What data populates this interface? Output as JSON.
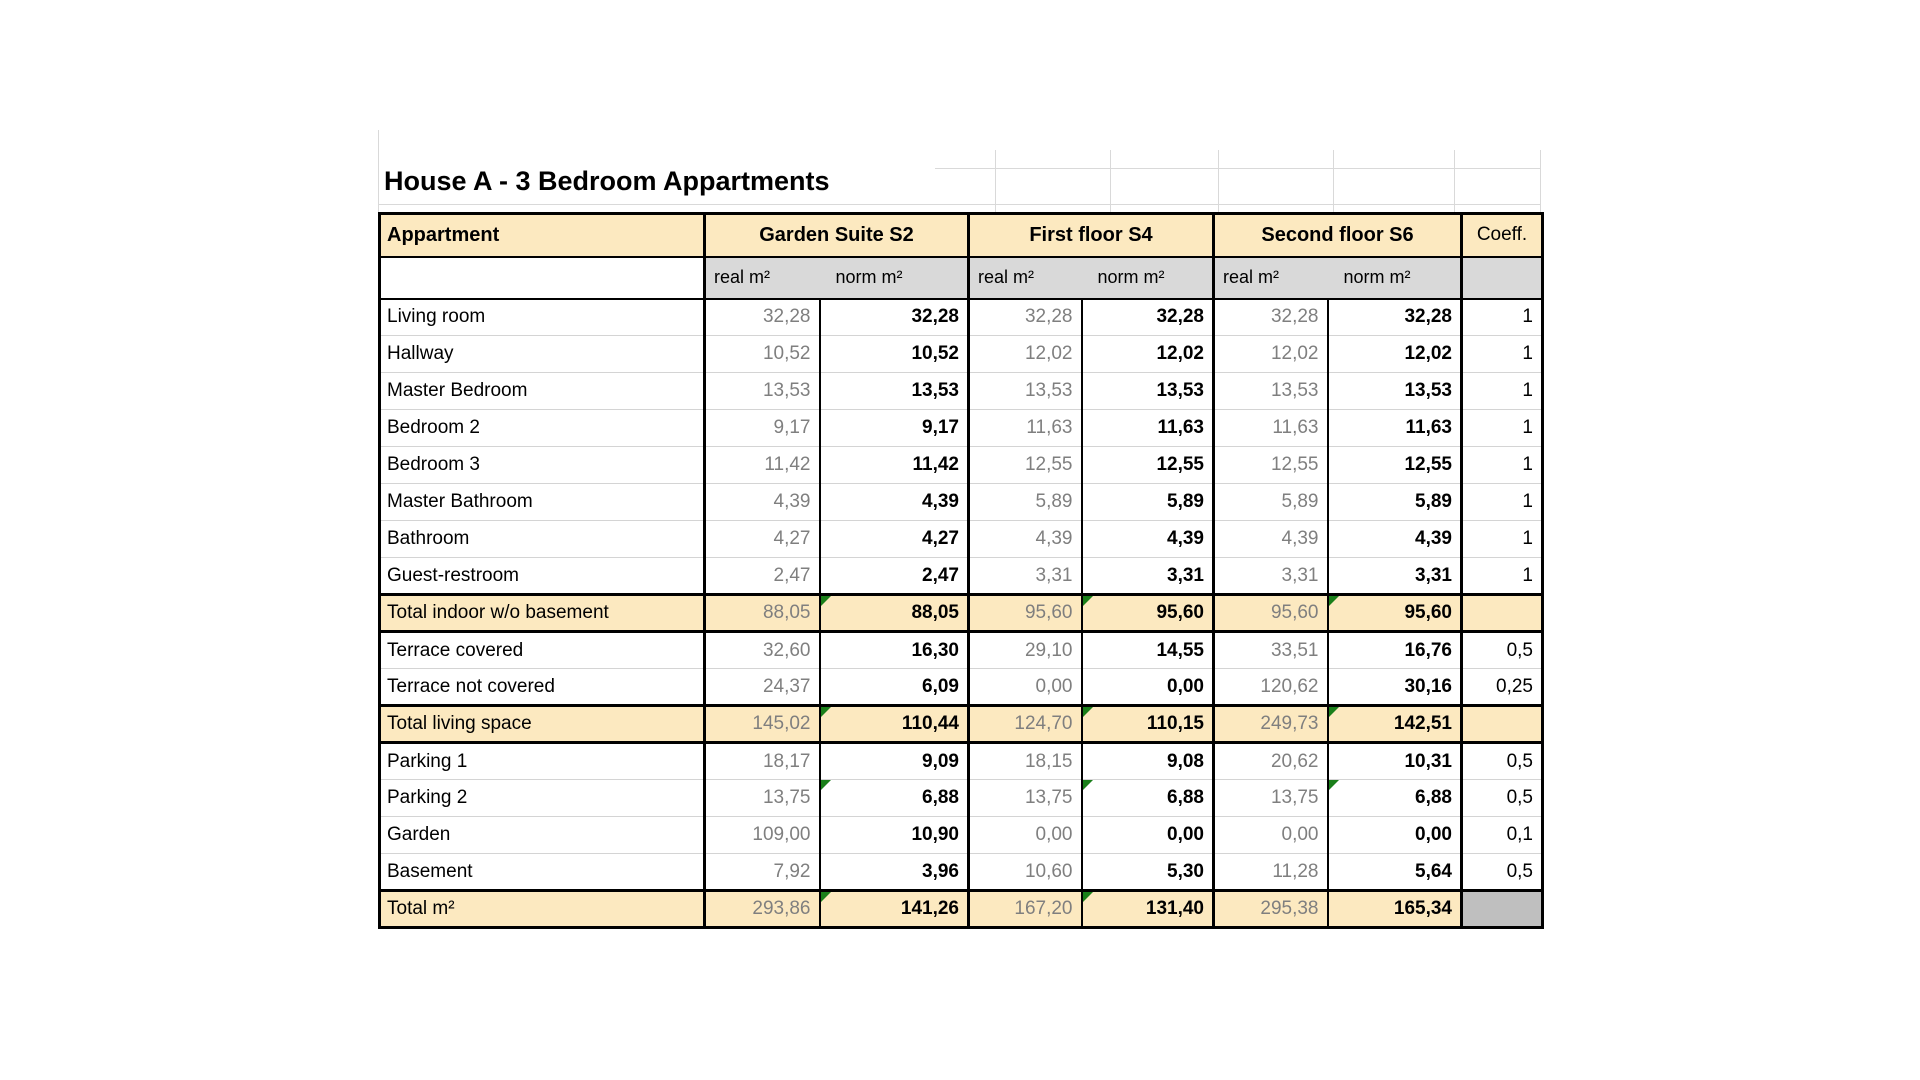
{
  "title": "House A - 3 Bedroom Appartments",
  "table": {
    "corner_label": "Appartment",
    "coeff_label": "Coeff.",
    "groups": [
      {
        "label": "Garden Suite S2"
      },
      {
        "label": "First floor S4"
      },
      {
        "label": "Second floor S6"
      }
    ],
    "subheaders": {
      "real": "real m²",
      "norm": "norm m²"
    },
    "rows": [
      {
        "label": "Living room",
        "values": [
          "32,28",
          "32,28",
          "32,28",
          "32,28",
          "32,28",
          "32,28"
        ],
        "coeff": "1",
        "total": false
      },
      {
        "label": "Hallway",
        "values": [
          "10,52",
          "10,52",
          "12,02",
          "12,02",
          "12,02",
          "12,02"
        ],
        "coeff": "1",
        "total": false
      },
      {
        "label": "Master Bedroom",
        "values": [
          "13,53",
          "13,53",
          "13,53",
          "13,53",
          "13,53",
          "13,53"
        ],
        "coeff": "1",
        "total": false
      },
      {
        "label": "Bedroom 2",
        "values": [
          "9,17",
          "9,17",
          "11,63",
          "11,63",
          "11,63",
          "11,63"
        ],
        "coeff": "1",
        "total": false
      },
      {
        "label": "Bedroom 3",
        "values": [
          "11,42",
          "11,42",
          "12,55",
          "12,55",
          "12,55",
          "12,55"
        ],
        "coeff": "1",
        "total": false
      },
      {
        "label": "Master Bathroom",
        "values": [
          "4,39",
          "4,39",
          "5,89",
          "5,89",
          "5,89",
          "5,89"
        ],
        "coeff": "1",
        "total": false
      },
      {
        "label": "Bathroom",
        "values": [
          "4,27",
          "4,27",
          "4,39",
          "4,39",
          "4,39",
          "4,39"
        ],
        "coeff": "1",
        "total": false
      },
      {
        "label": "Guest-restroom",
        "values": [
          "2,47",
          "2,47",
          "3,31",
          "3,31",
          "3,31",
          "3,31"
        ],
        "coeff": "1",
        "total": false
      },
      {
        "label": "Total indoor w/o basement",
        "values": [
          "88,05",
          "88,05",
          "95,60",
          "95,60",
          "95,60",
          "95,60"
        ],
        "coeff": "",
        "total": true,
        "flags": [
          0,
          1,
          0,
          1,
          0,
          1
        ]
      },
      {
        "label": "Terrace covered",
        "values": [
          "32,60",
          "16,30",
          "29,10",
          "14,55",
          "33,51",
          "16,76"
        ],
        "coeff": "0,5",
        "total": false
      },
      {
        "label": "Terrace not covered",
        "values": [
          "24,37",
          "6,09",
          "0,00",
          "0,00",
          "120,62",
          "30,16"
        ],
        "coeff": "0,25",
        "total": false
      },
      {
        "label": "Total living space",
        "values": [
          "145,02",
          "110,44",
          "124,70",
          "110,15",
          "249,73",
          "142,51"
        ],
        "coeff": "",
        "total": true,
        "flags": [
          0,
          1,
          0,
          1,
          0,
          1
        ]
      },
      {
        "label": "Parking 1",
        "values": [
          "18,17",
          "9,09",
          "18,15",
          "9,08",
          "20,62",
          "10,31"
        ],
        "coeff": "0,5",
        "total": false
      },
      {
        "label": "Parking 2",
        "values": [
          "13,75",
          "6,88",
          "13,75",
          "6,88",
          "13,75",
          "6,88"
        ],
        "coeff": "0,5",
        "total": false,
        "flags": [
          0,
          1,
          0,
          1,
          0,
          1
        ]
      },
      {
        "label": "Garden",
        "values": [
          "109,00",
          "10,90",
          "0,00",
          "0,00",
          "0,00",
          "0,00"
        ],
        "coeff": "0,1",
        "total": false
      },
      {
        "label": "Basement",
        "values": [
          "7,92",
          "3,96",
          "10,60",
          "5,30",
          "11,28",
          "5,64"
        ],
        "coeff": "0,5",
        "total": false
      },
      {
        "label": "Total m²",
        "values": [
          "293,86",
          "141,26",
          "167,20",
          "131,40",
          "295,38",
          "165,34"
        ],
        "coeff": "",
        "total": true,
        "coeff_gray": true,
        "flags": [
          0,
          1,
          0,
          1,
          0,
          0
        ]
      }
    ]
  },
  "colors": {
    "header_fill": "#fce9c0",
    "subheader_fill": "#d9d9d9",
    "total_fill": "#fce9c0",
    "disabled_fill": "#bfbfbf",
    "real_text": "#7f7f7f",
    "flag_green": "#1a7f1a",
    "gridline": "#d9d9d9",
    "border": "#000000"
  }
}
